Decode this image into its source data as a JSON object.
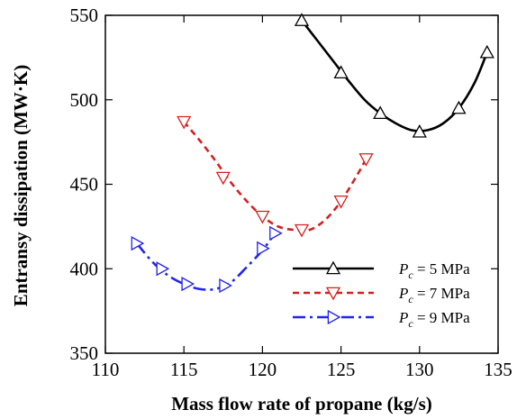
{
  "chart_data": {
    "type": "line",
    "xlabel": "Mass flow rate of propane (kg/s)",
    "ylabel": "Entransy dissipation (MW·K)",
    "xlim": [
      110,
      135
    ],
    "ylim": [
      350,
      550
    ],
    "xticks": [
      110,
      115,
      120,
      125,
      130,
      135
    ],
    "yticks": [
      350,
      400,
      450,
      500,
      550
    ],
    "legend_position": "bottom-right",
    "series": [
      {
        "name": "P_c = 5 MPa",
        "legend": {
          "symbol": "P",
          "sub": "c",
          "text": " = 5 MPa"
        },
        "color": "#000000",
        "dash": "solid",
        "marker": "triangle-up",
        "curve_x": [
          122.5,
          123.5,
          124.5,
          125.5,
          126.5,
          127.5,
          128.5,
          129.5,
          130.5,
          131.5,
          132.5,
          133.5,
          134.3
        ],
        "curve_y": [
          547,
          535,
          523,
          511,
          500,
          492,
          486,
          482,
          482,
          486,
          495,
          510,
          528
        ],
        "marker_x": [
          122.5,
          125.0,
          127.5,
          130.0,
          132.5,
          134.3
        ],
        "marker_y": [
          547,
          516,
          492,
          481,
          495,
          528
        ]
      },
      {
        "name": "P_c = 7 MPa",
        "legend": {
          "symbol": "P",
          "sub": "c",
          "text": " = 7 MPa"
        },
        "color": "#d42020",
        "dash": "short-dash",
        "marker": "triangle-down",
        "curve_x": [
          115.0,
          116.0,
          117.0,
          118.0,
          119.0,
          120.0,
          121.0,
          122.0,
          123.0,
          124.0,
          125.0,
          126.0,
          126.6
        ],
        "curve_y": [
          487,
          476,
          464,
          451,
          440,
          431,
          425,
          423,
          423,
          429,
          440,
          455,
          465
        ],
        "marker_x": [
          115.0,
          117.5,
          120.0,
          122.5,
          125.0,
          126.6
        ],
        "marker_y": [
          487,
          454,
          431,
          423,
          440,
          465
        ]
      },
      {
        "name": "P_c = 9 MPa",
        "legend": {
          "symbol": "P",
          "sub": "c",
          "text": " = 9 MPa"
        },
        "color": "#2323ee",
        "dash": "dash-dot",
        "marker": "triangle-right",
        "curve_x": [
          112.0,
          113.0,
          114.0,
          115.0,
          116.0,
          117.0,
          118.0,
          119.0,
          120.0,
          120.8
        ],
        "curve_y": [
          415,
          404,
          396,
          391,
          388,
          388,
          392,
          401,
          411,
          421
        ],
        "marker_x": [
          112.0,
          113.6,
          115.2,
          117.6,
          120.0,
          120.8
        ],
        "marker_y": [
          415,
          400,
          391,
          390,
          412,
          421
        ]
      }
    ]
  }
}
